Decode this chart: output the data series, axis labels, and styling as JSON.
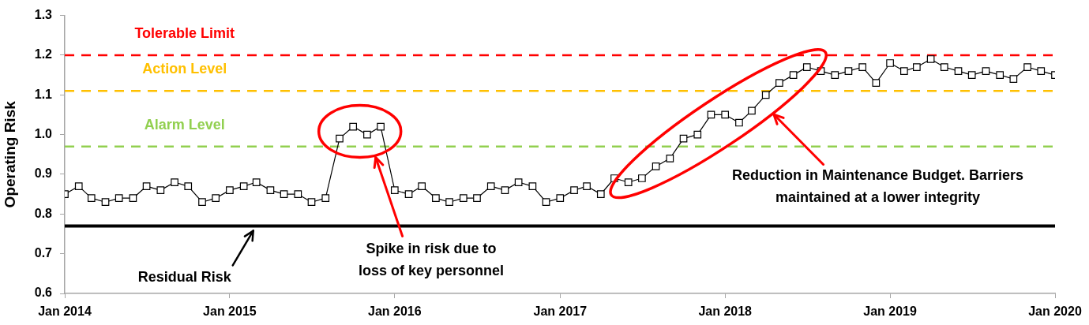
{
  "chart_data": {
    "type": "line",
    "ylabel": "Operating Risk",
    "x": [
      "2014-01",
      "2014-02",
      "2014-03",
      "2014-04",
      "2014-05",
      "2014-06",
      "2014-07",
      "2014-08",
      "2014-09",
      "2014-10",
      "2014-11",
      "2014-12",
      "2015-01",
      "2015-02",
      "2015-03",
      "2015-04",
      "2015-05",
      "2015-06",
      "2015-07",
      "2015-08",
      "2015-09",
      "2015-10",
      "2015-11",
      "2015-12",
      "2016-01",
      "2016-02",
      "2016-03",
      "2016-04",
      "2016-05",
      "2016-06",
      "2016-07",
      "2016-08",
      "2016-09",
      "2016-10",
      "2016-11",
      "2016-12",
      "2017-01",
      "2017-02",
      "2017-03",
      "2017-04",
      "2017-05",
      "2017-06",
      "2017-07",
      "2017-08",
      "2017-09",
      "2017-10",
      "2017-11",
      "2017-12",
      "2018-01",
      "2018-02",
      "2018-03",
      "2018-04",
      "2018-05",
      "2018-06",
      "2018-07",
      "2018-08",
      "2018-09",
      "2018-10",
      "2018-11",
      "2018-12",
      "2019-01",
      "2019-02",
      "2019-03",
      "2019-04",
      "2019-05",
      "2019-06",
      "2019-07",
      "2019-08",
      "2019-09",
      "2019-10",
      "2019-11",
      "2019-12",
      "2020-01"
    ],
    "values": [
      0.85,
      0.87,
      0.84,
      0.83,
      0.84,
      0.84,
      0.87,
      0.86,
      0.88,
      0.87,
      0.83,
      0.84,
      0.86,
      0.87,
      0.88,
      0.86,
      0.85,
      0.85,
      0.83,
      0.84,
      0.99,
      1.02,
      1.0,
      1.02,
      0.86,
      0.85,
      0.87,
      0.84,
      0.83,
      0.84,
      0.84,
      0.87,
      0.86,
      0.88,
      0.87,
      0.83,
      0.84,
      0.86,
      0.87,
      0.85,
      0.89,
      0.88,
      0.89,
      0.92,
      0.94,
      0.99,
      1.0,
      1.05,
      1.05,
      1.03,
      1.06,
      1.1,
      1.13,
      1.15,
      1.17,
      1.16,
      1.15,
      1.16,
      1.17,
      1.13,
      1.18,
      1.16,
      1.17,
      1.19,
      1.17,
      1.16,
      1.15,
      1.16,
      1.15,
      1.14,
      1.17,
      1.16,
      1.15
    ],
    "color": "#000000",
    "marker": "square",
    "line_style": "solid",
    "grid": false,
    "xlim": [
      "2014-01",
      "2020-01"
    ],
    "xticks": [
      {
        "value": "2014-01",
        "label": "Jan 2014"
      },
      {
        "value": "2015-01",
        "label": "Jan 2015"
      },
      {
        "value": "2016-01",
        "label": "Jan 2016"
      },
      {
        "value": "2017-01",
        "label": "Jan 2017"
      },
      {
        "value": "2018-01",
        "label": "Jan 2018"
      },
      {
        "value": "2019-01",
        "label": "Jan 2019"
      },
      {
        "value": "2020-01",
        "label": "Jan 2020"
      }
    ],
    "ylim": [
      0.6,
      1.3
    ],
    "yticks": [
      0.6,
      0.7,
      0.8,
      0.9,
      {
        "value": 1,
        "label": "1.0"
      },
      1.1,
      1.2,
      1.3
    ],
    "ref_lines": [
      {
        "axis": "y",
        "value": 1.2,
        "label": "Tolerable Limit",
        "color": "#ff0000",
        "line_style": "dashed"
      },
      {
        "axis": "y",
        "value": 1.11,
        "label": "Action Level",
        "color": "#ffc000",
        "line_style": "dashed"
      },
      {
        "axis": "y",
        "value": 0.97,
        "label": "Alarm Level",
        "color": "#92d050",
        "line_style": "dashed"
      },
      {
        "axis": "y",
        "value": 0.77,
        "label": "Residual Risk",
        "color": "#000000",
        "line_style": "solid"
      }
    ],
    "annotations": [
      "Spike in risk due to loss of key personnel",
      "Reduction in Maintenance Budget. Barriers maintained at a lower integrity"
    ]
  }
}
